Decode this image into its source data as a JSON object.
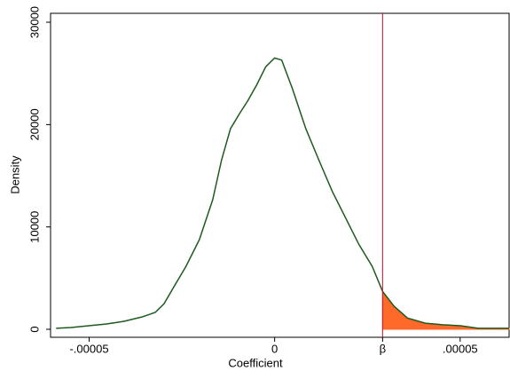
{
  "chart_data": {
    "type": "line",
    "x_label": "Coefficient",
    "y_label": "Density",
    "x": [
      -5.89e-05,
      -5.49e-05,
      -5.01e-05,
      -4.53e-05,
      -4.06e-05,
      -3.58e-05,
      -3.22e-05,
      -2.98e-05,
      -2.74e-05,
      -2.39e-05,
      -2.03e-05,
      -1.67e-05,
      -1.43e-05,
      -1.19e-05,
      -9.5e-06,
      -7.2e-06,
      -4.8e-06,
      -2.4e-06,
      0,
      1.9e-06,
      4.8e-06,
      8.4e-06,
      1.19e-05,
      1.55e-05,
      1.91e-05,
      2.27e-05,
      2.63e-05,
      2.91e-05,
      3.22e-05,
      3.58e-05,
      4.06e-05,
      4.53e-05,
      5.01e-05,
      5.49e-05,
      6.32e-05
    ],
    "series": [
      {
        "color": "#1e5a1e",
        "values": [
          100,
          170,
          350,
          520,
          780,
          1200,
          1650,
          2500,
          4000,
          6150,
          8750,
          12650,
          16550,
          19600,
          21050,
          22350,
          23900,
          25650,
          26500,
          26300,
          23500,
          19600,
          16550,
          13500,
          10900,
          8300,
          6150,
          3700,
          2250,
          1100,
          600,
          450,
          350,
          100,
          100
        ]
      }
    ],
    "shade_color": "#ff6a2a",
    "marker_line_color": "#c8102e",
    "xlim": [
      -6.04e-05,
      6.32e-05
    ],
    "ylim": [
      -780,
      30870
    ],
    "xticks": [
      {
        "value": -5e-05,
        "label": "-.00005"
      },
      0,
      {
        "value": 2.91e-05,
        "label": "β"
      },
      {
        "value": 5e-05,
        "label": ".00005"
      }
    ],
    "yticks": [
      0,
      10000,
      20000,
      30000
    ]
  }
}
